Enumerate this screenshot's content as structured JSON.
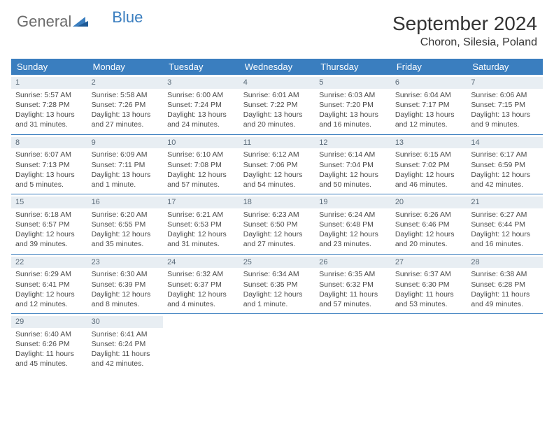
{
  "brand": {
    "word1": "General",
    "word2": "Blue"
  },
  "title": "September 2024",
  "location": "Choron, Silesia, Poland",
  "colors": {
    "header_bg": "#3a7ebf",
    "header_text": "#ffffff",
    "daynum_bg": "#e8eef3",
    "daynum_text": "#5a6a78",
    "body_text": "#4a4a4a",
    "row_border": "#3a7ebf",
    "logo_gray": "#6b6b6b",
    "logo_blue": "#3a7ebf"
  },
  "typography": {
    "title_fontsize": 28,
    "location_fontsize": 16,
    "th_fontsize": 13,
    "cell_fontsize": 10.5,
    "daynum_fontsize": 11
  },
  "weekdays": [
    "Sunday",
    "Monday",
    "Tuesday",
    "Wednesday",
    "Thursday",
    "Friday",
    "Saturday"
  ],
  "days": [
    {
      "n": 1,
      "sr": "5:57 AM",
      "ss": "7:28 PM",
      "dl": "13 hours and 31 minutes."
    },
    {
      "n": 2,
      "sr": "5:58 AM",
      "ss": "7:26 PM",
      "dl": "13 hours and 27 minutes."
    },
    {
      "n": 3,
      "sr": "6:00 AM",
      "ss": "7:24 PM",
      "dl": "13 hours and 24 minutes."
    },
    {
      "n": 4,
      "sr": "6:01 AM",
      "ss": "7:22 PM",
      "dl": "13 hours and 20 minutes."
    },
    {
      "n": 5,
      "sr": "6:03 AM",
      "ss": "7:20 PM",
      "dl": "13 hours and 16 minutes."
    },
    {
      "n": 6,
      "sr": "6:04 AM",
      "ss": "7:17 PM",
      "dl": "13 hours and 12 minutes."
    },
    {
      "n": 7,
      "sr": "6:06 AM",
      "ss": "7:15 PM",
      "dl": "13 hours and 9 minutes."
    },
    {
      "n": 8,
      "sr": "6:07 AM",
      "ss": "7:13 PM",
      "dl": "13 hours and 5 minutes."
    },
    {
      "n": 9,
      "sr": "6:09 AM",
      "ss": "7:11 PM",
      "dl": "13 hours and 1 minute."
    },
    {
      "n": 10,
      "sr": "6:10 AM",
      "ss": "7:08 PM",
      "dl": "12 hours and 57 minutes."
    },
    {
      "n": 11,
      "sr": "6:12 AM",
      "ss": "7:06 PM",
      "dl": "12 hours and 54 minutes."
    },
    {
      "n": 12,
      "sr": "6:14 AM",
      "ss": "7:04 PM",
      "dl": "12 hours and 50 minutes."
    },
    {
      "n": 13,
      "sr": "6:15 AM",
      "ss": "7:02 PM",
      "dl": "12 hours and 46 minutes."
    },
    {
      "n": 14,
      "sr": "6:17 AM",
      "ss": "6:59 PM",
      "dl": "12 hours and 42 minutes."
    },
    {
      "n": 15,
      "sr": "6:18 AM",
      "ss": "6:57 PM",
      "dl": "12 hours and 39 minutes."
    },
    {
      "n": 16,
      "sr": "6:20 AM",
      "ss": "6:55 PM",
      "dl": "12 hours and 35 minutes."
    },
    {
      "n": 17,
      "sr": "6:21 AM",
      "ss": "6:53 PM",
      "dl": "12 hours and 31 minutes."
    },
    {
      "n": 18,
      "sr": "6:23 AM",
      "ss": "6:50 PM",
      "dl": "12 hours and 27 minutes."
    },
    {
      "n": 19,
      "sr": "6:24 AM",
      "ss": "6:48 PM",
      "dl": "12 hours and 23 minutes."
    },
    {
      "n": 20,
      "sr": "6:26 AM",
      "ss": "6:46 PM",
      "dl": "12 hours and 20 minutes."
    },
    {
      "n": 21,
      "sr": "6:27 AM",
      "ss": "6:44 PM",
      "dl": "12 hours and 16 minutes."
    },
    {
      "n": 22,
      "sr": "6:29 AM",
      "ss": "6:41 PM",
      "dl": "12 hours and 12 minutes."
    },
    {
      "n": 23,
      "sr": "6:30 AM",
      "ss": "6:39 PM",
      "dl": "12 hours and 8 minutes."
    },
    {
      "n": 24,
      "sr": "6:32 AM",
      "ss": "6:37 PM",
      "dl": "12 hours and 4 minutes."
    },
    {
      "n": 25,
      "sr": "6:34 AM",
      "ss": "6:35 PM",
      "dl": "12 hours and 1 minute."
    },
    {
      "n": 26,
      "sr": "6:35 AM",
      "ss": "6:32 PM",
      "dl": "11 hours and 57 minutes."
    },
    {
      "n": 27,
      "sr": "6:37 AM",
      "ss": "6:30 PM",
      "dl": "11 hours and 53 minutes."
    },
    {
      "n": 28,
      "sr": "6:38 AM",
      "ss": "6:28 PM",
      "dl": "11 hours and 49 minutes."
    },
    {
      "n": 29,
      "sr": "6:40 AM",
      "ss": "6:26 PM",
      "dl": "11 hours and 45 minutes."
    },
    {
      "n": 30,
      "sr": "6:41 AM",
      "ss": "6:24 PM",
      "dl": "11 hours and 42 minutes."
    }
  ],
  "labels": {
    "sunrise": "Sunrise:",
    "sunset": "Sunset:",
    "daylight": "Daylight:"
  },
  "grid": {
    "first_weekday_index": 0,
    "rows": 5,
    "cols": 7
  }
}
